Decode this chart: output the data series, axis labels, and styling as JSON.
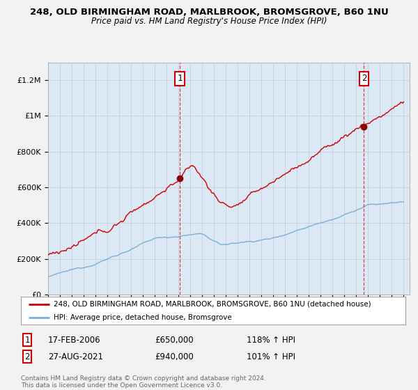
{
  "title1": "248, OLD BIRMINGHAM ROAD, MARLBROOK, BROMSGROVE, B60 1NU",
  "title2": "Price paid vs. HM Land Registry's House Price Index (HPI)",
  "red_label": "248, OLD BIRMINGHAM ROAD, MARLBROOK, BROMSGROVE, B60 1NU (detached house)",
  "blue_label": "HPI: Average price, detached house, Bromsgrove",
  "sale1_date": "17-FEB-2006",
  "sale1_price": "£650,000",
  "sale1_hpi": "118% ↑ HPI",
  "sale2_date": "27-AUG-2021",
  "sale2_price": "£940,000",
  "sale2_hpi": "101% ↑ HPI",
  "footer": "Contains HM Land Registry data © Crown copyright and database right 2024.\nThis data is licensed under the Open Government Licence v3.0.",
  "sale1_year": 2006.12,
  "sale2_year": 2021.65,
  "sale1_value": 650000,
  "sale2_value": 940000,
  "red_color": "#cc0000",
  "blue_color": "#7ab0d4",
  "bg_color": "#f2f2f2",
  "plot_bg": "#dce9f5",
  "ylim": [
    0,
    1300000
  ],
  "xlim_start": 1995,
  "xlim_end": 2025.5
}
